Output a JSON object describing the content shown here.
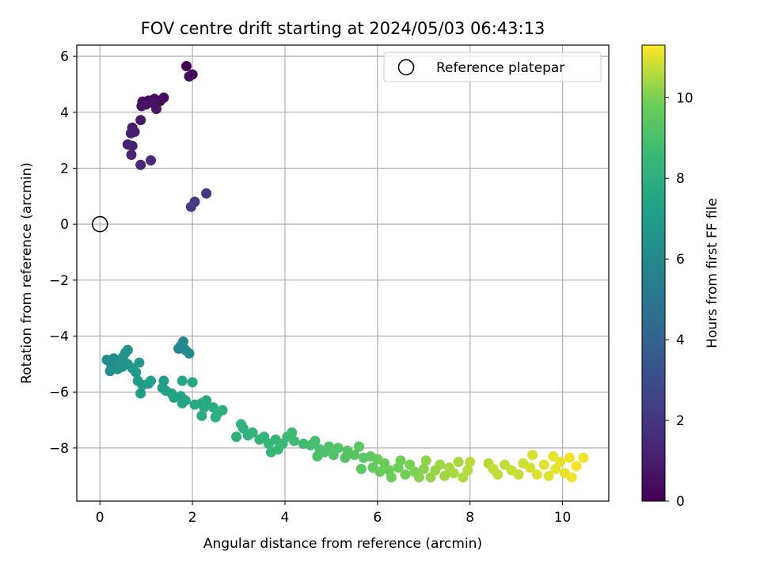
{
  "chart_data": {
    "type": "scatter",
    "title": "FOV centre drift starting at 2024/05/03 06:43:13",
    "xlabel": "Angular distance from reference (arcmin)",
    "ylabel": "Rotation from reference (arcmin)",
    "xlim": [
      -0.5,
      11
    ],
    "ylim": [
      -9.9,
      6.4
    ],
    "xticks": [
      0,
      2,
      4,
      6,
      8,
      10
    ],
    "yticks": [
      -8,
      -6,
      -4,
      -2,
      0,
      2,
      4,
      6
    ],
    "xtick_labels": [
      "0",
      "2",
      "4",
      "6",
      "8",
      "10"
    ],
    "ytick_labels": [
      "−8",
      "−6",
      "−4",
      "−2",
      "0",
      "2",
      "4",
      "6"
    ],
    "grid": true,
    "legend": {
      "placement": "upper right",
      "entries": [
        "Reference platepar"
      ]
    },
    "reference_point": {
      "x": 0,
      "y": 0
    },
    "colorbar": {
      "label": "Hours from first FF file",
      "colormap": "viridis",
      "range": [
        0,
        11.3
      ],
      "ticks": [
        0,
        2,
        4,
        6,
        8,
        10
      ],
      "tick_labels": [
        "0",
        "2",
        "4",
        "6",
        "8",
        "10"
      ]
    },
    "series": [
      {
        "points": [
          {
            "x": 1.87,
            "y": 5.65,
            "c": 0.05
          },
          {
            "x": 2.0,
            "y": 5.35,
            "c": 0.15
          },
          {
            "x": 1.93,
            "y": 5.28,
            "c": 0.2
          },
          {
            "x": 1.38,
            "y": 4.52,
            "c": 0.35
          },
          {
            "x": 1.3,
            "y": 4.4,
            "c": 0.4
          },
          {
            "x": 1.18,
            "y": 4.48,
            "c": 0.45
          },
          {
            "x": 1.05,
            "y": 4.42,
            "c": 0.5
          },
          {
            "x": 0.92,
            "y": 4.38,
            "c": 0.55
          },
          {
            "x": 0.9,
            "y": 4.22,
            "c": 0.6
          },
          {
            "x": 1.0,
            "y": 4.28,
            "c": 0.65
          },
          {
            "x": 1.12,
            "y": 4.35,
            "c": 0.7
          },
          {
            "x": 1.22,
            "y": 4.12,
            "c": 0.75
          },
          {
            "x": 0.88,
            "y": 3.72,
            "c": 0.85
          },
          {
            "x": 0.7,
            "y": 3.45,
            "c": 0.95
          },
          {
            "x": 0.75,
            "y": 3.3,
            "c": 1.0
          },
          {
            "x": 0.67,
            "y": 3.25,
            "c": 1.05
          },
          {
            "x": 0.6,
            "y": 2.85,
            "c": 1.15
          },
          {
            "x": 0.7,
            "y": 2.8,
            "c": 1.2
          },
          {
            "x": 0.68,
            "y": 2.48,
            "c": 1.3
          },
          {
            "x": 0.88,
            "y": 2.12,
            "c": 1.4
          },
          {
            "x": 1.1,
            "y": 2.28,
            "c": 1.5
          },
          {
            "x": 2.3,
            "y": 1.1,
            "c": 2.0
          },
          {
            "x": 2.05,
            "y": 0.8,
            "c": 2.2
          },
          {
            "x": 1.97,
            "y": 0.62,
            "c": 2.35
          },
          {
            "x": 1.8,
            "y": -4.2,
            "c": 5.85
          },
          {
            "x": 1.75,
            "y": -4.35,
            "c": 5.9
          },
          {
            "x": 1.7,
            "y": -4.45,
            "c": 5.95
          },
          {
            "x": 1.85,
            "y": -4.5,
            "c": 6.0
          },
          {
            "x": 1.93,
            "y": -4.62,
            "c": 6.05
          },
          {
            "x": 0.15,
            "y": -4.85,
            "c": 6.15
          },
          {
            "x": 0.3,
            "y": -4.8,
            "c": 6.2
          },
          {
            "x": 0.25,
            "y": -5.05,
            "c": 6.25
          },
          {
            "x": 0.4,
            "y": -4.95,
            "c": 6.3
          },
          {
            "x": 0.22,
            "y": -5.25,
            "c": 6.3
          },
          {
            "x": 0.38,
            "y": -5.18,
            "c": 6.35
          },
          {
            "x": 0.55,
            "y": -4.6,
            "c": 6.4
          },
          {
            "x": 0.6,
            "y": -4.5,
            "c": 6.45
          },
          {
            "x": 0.5,
            "y": -4.75,
            "c": 6.5
          },
          {
            "x": 0.48,
            "y": -5.1,
            "c": 6.55
          },
          {
            "x": 0.6,
            "y": -5.0,
            "c": 6.6
          },
          {
            "x": 0.7,
            "y": -5.15,
            "c": 6.7
          },
          {
            "x": 0.85,
            "y": -4.95,
            "c": 6.75
          },
          {
            "x": 0.78,
            "y": -5.3,
            "c": 6.8
          },
          {
            "x": 0.82,
            "y": -5.6,
            "c": 6.9
          },
          {
            "x": 0.92,
            "y": -5.75,
            "c": 6.95
          },
          {
            "x": 0.88,
            "y": -6.05,
            "c": 7.0
          },
          {
            "x": 1.1,
            "y": -5.6,
            "c": 7.05
          },
          {
            "x": 1.05,
            "y": -5.7,
            "c": 7.1
          },
          {
            "x": 1.38,
            "y": -5.6,
            "c": 7.15
          },
          {
            "x": 1.35,
            "y": -5.85,
            "c": 7.2
          },
          {
            "x": 1.42,
            "y": -5.95,
            "c": 7.25
          },
          {
            "x": 1.55,
            "y": -6.05,
            "c": 7.3
          },
          {
            "x": 1.6,
            "y": -6.2,
            "c": 7.35
          },
          {
            "x": 1.75,
            "y": -6.15,
            "c": 7.4
          },
          {
            "x": 1.78,
            "y": -6.4,
            "c": 7.45
          },
          {
            "x": 1.85,
            "y": -6.3,
            "c": 7.5
          },
          {
            "x": 1.78,
            "y": -5.6,
            "c": 7.5
          },
          {
            "x": 2.0,
            "y": -5.65,
            "c": 7.55
          },
          {
            "x": 2.05,
            "y": -6.45,
            "c": 7.6
          },
          {
            "x": 2.2,
            "y": -6.4,
            "c": 7.65
          },
          {
            "x": 2.25,
            "y": -6.55,
            "c": 7.7
          },
          {
            "x": 2.3,
            "y": -6.3,
            "c": 7.75
          },
          {
            "x": 2.2,
            "y": -6.85,
            "c": 7.8
          },
          {
            "x": 2.45,
            "y": -6.55,
            "c": 7.85
          },
          {
            "x": 2.55,
            "y": -6.75,
            "c": 7.9
          },
          {
            "x": 2.65,
            "y": -6.65,
            "c": 7.95
          },
          {
            "x": 2.5,
            "y": -6.9,
            "c": 8.0
          },
          {
            "x": 2.95,
            "y": -7.6,
            "c": 8.05
          },
          {
            "x": 3.1,
            "y": -7.3,
            "c": 8.1
          },
          {
            "x": 3.2,
            "y": -7.55,
            "c": 8.15
          },
          {
            "x": 3.05,
            "y": -7.15,
            "c": 8.2
          },
          {
            "x": 3.3,
            "y": -7.45,
            "c": 8.25
          },
          {
            "x": 3.45,
            "y": -7.7,
            "c": 8.3
          },
          {
            "x": 3.55,
            "y": -7.6,
            "c": 8.35
          },
          {
            "x": 3.65,
            "y": -7.85,
            "c": 8.4
          },
          {
            "x": 3.7,
            "y": -8.15,
            "c": 8.45
          },
          {
            "x": 3.8,
            "y": -7.7,
            "c": 8.5
          },
          {
            "x": 3.85,
            "y": -8.05,
            "c": 8.55
          },
          {
            "x": 3.95,
            "y": -7.85,
            "c": 8.6
          },
          {
            "x": 4.05,
            "y": -7.6,
            "c": 8.65
          },
          {
            "x": 4.15,
            "y": -7.45,
            "c": 8.7
          },
          {
            "x": 4.2,
            "y": -7.75,
            "c": 8.75
          },
          {
            "x": 4.4,
            "y": -7.85,
            "c": 8.8
          },
          {
            "x": 4.55,
            "y": -7.9,
            "c": 8.85
          },
          {
            "x": 4.65,
            "y": -7.75,
            "c": 8.9
          },
          {
            "x": 4.75,
            "y": -8.05,
            "c": 8.95
          },
          {
            "x": 4.7,
            "y": -8.3,
            "c": 9.0
          },
          {
            "x": 4.85,
            "y": -8.15,
            "c": 9.05
          },
          {
            "x": 4.95,
            "y": -7.95,
            "c": 9.1
          },
          {
            "x": 5.05,
            "y": -8.25,
            "c": 9.15
          },
          {
            "x": 5.15,
            "y": -8.0,
            "c": 9.2
          },
          {
            "x": 5.3,
            "y": -8.35,
            "c": 9.25
          },
          {
            "x": 5.35,
            "y": -8.1,
            "c": 9.3
          },
          {
            "x": 5.5,
            "y": -8.25,
            "c": 9.35
          },
          {
            "x": 5.6,
            "y": -7.95,
            "c": 9.4
          },
          {
            "x": 5.7,
            "y": -8.35,
            "c": 9.45
          },
          {
            "x": 5.65,
            "y": -8.75,
            "c": 9.5
          },
          {
            "x": 5.85,
            "y": -8.3,
            "c": 9.55
          },
          {
            "x": 5.9,
            "y": -8.7,
            "c": 9.6
          },
          {
            "x": 6.0,
            "y": -8.4,
            "c": 9.65
          },
          {
            "x": 6.05,
            "y": -8.85,
            "c": 9.7
          },
          {
            "x": 6.15,
            "y": -8.55,
            "c": 9.75
          },
          {
            "x": 6.25,
            "y": -8.8,
            "c": 9.8
          },
          {
            "x": 6.3,
            "y": -9.05,
            "c": 9.85
          },
          {
            "x": 6.45,
            "y": -8.7,
            "c": 9.9
          },
          {
            "x": 6.5,
            "y": -8.45,
            "c": 9.9
          },
          {
            "x": 6.6,
            "y": -8.95,
            "c": 9.95
          },
          {
            "x": 6.7,
            "y": -8.6,
            "c": 10.0
          },
          {
            "x": 6.8,
            "y": -8.85,
            "c": 10.05
          },
          {
            "x": 6.9,
            "y": -9.05,
            "c": 10.1
          },
          {
            "x": 7.0,
            "y": -8.75,
            "c": 10.15
          },
          {
            "x": 7.05,
            "y": -8.45,
            "c": 10.2
          },
          {
            "x": 7.15,
            "y": -9.05,
            "c": 10.25
          },
          {
            "x": 7.25,
            "y": -8.8,
            "c": 10.3
          },
          {
            "x": 7.35,
            "y": -8.6,
            "c": 10.35
          },
          {
            "x": 7.45,
            "y": -9.0,
            "c": 10.4
          },
          {
            "x": 7.55,
            "y": -8.7,
            "c": 10.45
          },
          {
            "x": 7.65,
            "y": -8.9,
            "c": 10.5
          },
          {
            "x": 7.75,
            "y": -8.5,
            "c": 10.5
          },
          {
            "x": 7.85,
            "y": -9.05,
            "c": 10.55
          },
          {
            "x": 7.95,
            "y": -8.8,
            "c": 10.6
          },
          {
            "x": 8.0,
            "y": -8.5,
            "c": 10.6
          },
          {
            "x": 8.4,
            "y": -8.55,
            "c": 10.65
          },
          {
            "x": 8.5,
            "y": -8.75,
            "c": 10.7
          },
          {
            "x": 8.6,
            "y": -8.95,
            "c": 10.7
          },
          {
            "x": 8.75,
            "y": -8.6,
            "c": 10.75
          },
          {
            "x": 8.9,
            "y": -8.8,
            "c": 10.8
          },
          {
            "x": 9.05,
            "y": -8.95,
            "c": 10.8
          },
          {
            "x": 9.15,
            "y": -8.55,
            "c": 10.85
          },
          {
            "x": 9.3,
            "y": -8.7,
            "c": 10.9
          },
          {
            "x": 9.35,
            "y": -8.25,
            "c": 10.9
          },
          {
            "x": 9.45,
            "y": -8.95,
            "c": 10.95
          },
          {
            "x": 9.6,
            "y": -8.6,
            "c": 11.0
          },
          {
            "x": 9.7,
            "y": -9.0,
            "c": 11.0
          },
          {
            "x": 9.8,
            "y": -8.3,
            "c": 11.05
          },
          {
            "x": 9.85,
            "y": -8.75,
            "c": 11.05
          },
          {
            "x": 9.95,
            "y": -8.5,
            "c": 11.1
          },
          {
            "x": 10.05,
            "y": -8.9,
            "c": 11.1
          },
          {
            "x": 10.15,
            "y": -8.35,
            "c": 11.15
          },
          {
            "x": 10.2,
            "y": -9.05,
            "c": 11.15
          },
          {
            "x": 10.3,
            "y": -8.65,
            "c": 11.2
          },
          {
            "x": 10.45,
            "y": -8.35,
            "c": 11.2
          }
        ]
      }
    ]
  }
}
